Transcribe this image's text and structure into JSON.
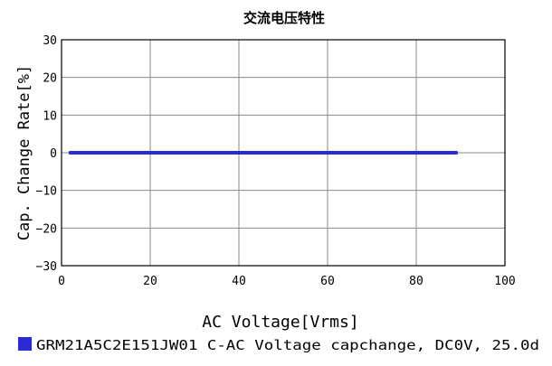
{
  "chart_data": {
    "type": "line",
    "title": "交流电压特性",
    "xlabel": "AC Voltage[Vrms]",
    "ylabel": "Cap. Change Rate[%]",
    "xlim": [
      0,
      100
    ],
    "ylim": [
      -30,
      30
    ],
    "xticks": [
      0,
      20,
      40,
      60,
      80,
      100
    ],
    "yticks": [
      30,
      20,
      10,
      0,
      -10,
      -20,
      -30
    ],
    "grid": true,
    "legend_position": "bottom",
    "series": [
      {
        "name": "GRM21A5C2E151JW01 C-AC Voltage capchange, DC0V, 25.0d",
        "color": "#2b2bd6",
        "x": [
          2,
          10,
          20,
          30,
          40,
          50,
          60,
          70,
          80,
          89
        ],
        "y": [
          0,
          0,
          0,
          0,
          0,
          0,
          0,
          0,
          0,
          0
        ]
      }
    ]
  }
}
